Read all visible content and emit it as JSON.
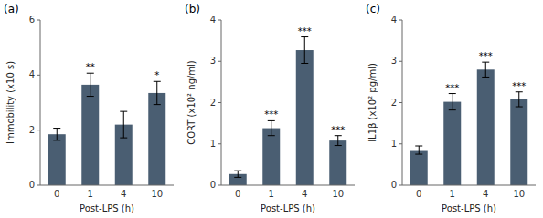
{
  "chart_data": [
    {
      "type": "bar",
      "title": "(a)",
      "categories": [
        "0",
        "1",
        "4",
        "10"
      ],
      "values": [
        1.85,
        3.65,
        2.2,
        3.35
      ],
      "errors": [
        0.22,
        0.42,
        0.48,
        0.42
      ],
      "annotations": [
        null,
        "**",
        null,
        "*"
      ],
      "xlabel": "Post-LPS (h)",
      "ylabel": "Immobility (x10 s)",
      "color": "#4a5e72",
      "ylim": [
        0,
        6
      ],
      "yticks": [
        0,
        2,
        4,
        6
      ],
      "grid": false
    },
    {
      "type": "bar",
      "title": "(b)",
      "categories": [
        "0",
        "1",
        "4",
        "10"
      ],
      "values": [
        0.27,
        1.38,
        3.27,
        1.08
      ],
      "errors": [
        0.08,
        0.18,
        0.32,
        0.12
      ],
      "annotations": [
        null,
        "***",
        "***",
        "***"
      ],
      "xlabel": "Post-LPS (h)",
      "ylabel": "CORT (x10² ng/ml)",
      "color": "#4a5e72",
      "ylim": [
        0,
        4
      ],
      "yticks": [
        0,
        1,
        2,
        3,
        4
      ],
      "grid": false
    },
    {
      "type": "bar",
      "title": "(c)",
      "categories": [
        "0",
        "1",
        "4",
        "10"
      ],
      "values": [
        0.85,
        2.02,
        2.8,
        2.08
      ],
      "errors": [
        0.1,
        0.2,
        0.18,
        0.18
      ],
      "annotations": [
        null,
        "***",
        "***",
        "***"
      ],
      "xlabel": "Post-LPS (h)",
      "ylabel": "IL1β (x10² pg/ml)",
      "color": "#4a5e72",
      "ylim": [
        0,
        4
      ],
      "yticks": [
        0,
        1,
        2,
        3,
        4
      ],
      "grid": false
    }
  ]
}
